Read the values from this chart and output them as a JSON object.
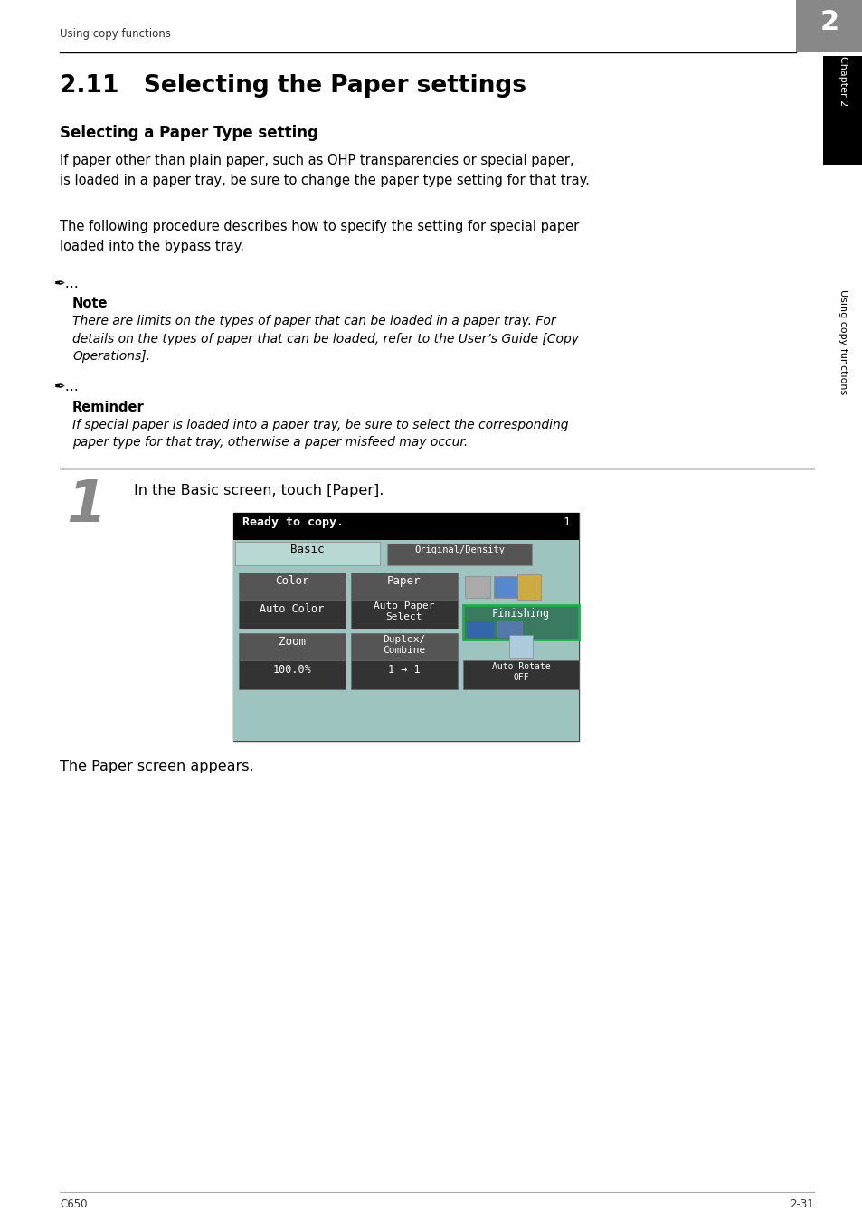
{
  "page_bg": "#ffffff",
  "header_text": "Using copy functions",
  "header_num": "2",
  "header_num_bg": "#888888",
  "chapter_title": "2.11   Selecting the Paper settings",
  "section_title": "Selecting a Paper Type setting",
  "body_text1": "If paper other than plain paper, such as OHP transparencies or special paper,\nis loaded in a paper tray, be sure to change the paper type setting for that tray.",
  "body_text2": "The following procedure describes how to specify the setting for special paper\nloaded into the bypass tray.",
  "note_label": "Note",
  "note_text": "There are limits on the types of paper that can be loaded in a paper tray. For\ndetails on the types of paper that can be loaded, refer to the User’s Guide [Copy\nOperations].",
  "reminder_label": "Reminder",
  "reminder_text": "If special paper is loaded into a paper tray, be sure to select the corresponding\npaper type for that tray, otherwise a paper misfeed may occur.",
  "step_num": "1",
  "step_text": "In the Basic screen, touch [Paper].",
  "step_caption": "The Paper screen appears.",
  "sidebar_chapter": "Chapter 2",
  "sidebar_section": "Using copy functions",
  "footer_left": "C650",
  "footer_right": "2-31",
  "screen_bg": "#000000",
  "screen_header_text": "Ready to copy.",
  "screen_header_num": "1",
  "screen_tab_bg": "#9dc4bf",
  "screen_basic_tab": "Basic",
  "screen_orig_tab": "Original/Density",
  "screen_orig_tab_bg": "#666666",
  "screen_orig_tab_fg": "#ffffff",
  "screen_btn_bg": "#555555",
  "screen_btn_dark": "#333333",
  "screen_btn_fg": "#ffffff",
  "screen_finishing_bg": "#3a7a60",
  "screen_finishing_border": "#22aa55"
}
